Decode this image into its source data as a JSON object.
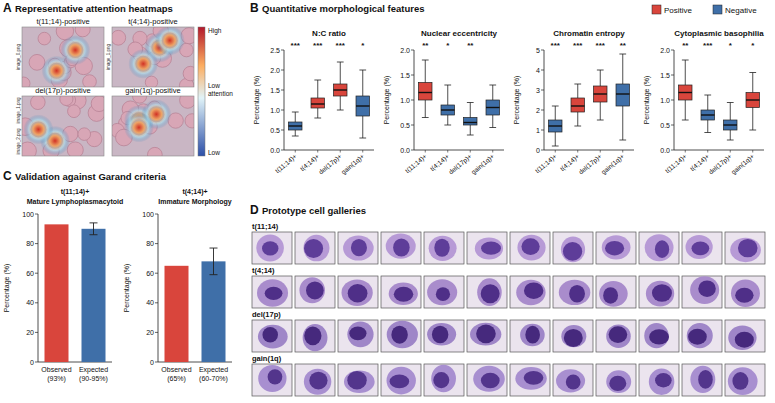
{
  "panel_a": {
    "letter": "A",
    "title": "Representative attention heatmaps",
    "images": [
      {
        "label": "t(11;14)-positive",
        "files": [
          "image_0.png"
        ]
      },
      {
        "label": "t(4;14)-positive",
        "files": [
          "image_1.png"
        ]
      },
      {
        "label": "del(17p)-positive",
        "files": [
          "image_1.png",
          "image_2.png"
        ]
      },
      {
        "label": "gain(1q)-positive",
        "files": []
      }
    ],
    "colorbar_labels": {
      "high": "High",
      "middle": "Low attention",
      "low": "Low"
    }
  },
  "panel_b": {
    "letter": "B",
    "title": "Quantitative morphological features",
    "legend_entries": [
      {
        "name": "Positive",
        "color": "#d9453c"
      },
      {
        "name": "Negative",
        "color": "#3f6fa8"
      }
    ]
  },
  "panel_c": {
    "letter": "C",
    "title": "Validation against Garand criteria"
  },
  "panel_d": {
    "letter": "D",
    "title": "Prototype cell galleries",
    "rows": [
      "t(11;14)",
      "t(4;14)",
      "del(17p)",
      "gain(1q)"
    ]
  },
  "chart_data": [
    {
      "type": "box",
      "title": "N:C ratio",
      "y_label": "Percentage (%)",
      "categories": [
        "t(11;14)+",
        "t(4;14)+",
        "del(17p)+",
        "gain(1q)+"
      ],
      "min": [
        0.35,
        0.8,
        1.0,
        0.3
      ],
      "q1": [
        0.5,
        1.05,
        1.35,
        0.85
      ],
      "median": [
        0.6,
        1.15,
        1.5,
        1.1
      ],
      "q3": [
        0.7,
        1.3,
        1.65,
        1.35
      ],
      "max": [
        0.95,
        1.75,
        2.2,
        2.0
      ],
      "colors": [
        "#3f6fa8",
        "#d9453c",
        "#d9453c",
        "#3f6fa8"
      ],
      "significance": [
        "***",
        "***",
        "***",
        "*"
      ],
      "ylim": [
        0,
        2.5
      ],
      "yticks": [
        {
          "value": 0,
          "label": "0.0"
        },
        {
          "value": 0.5,
          "label": "0.5"
        },
        {
          "value": 1,
          "label": "1.0"
        },
        {
          "value": 1.5,
          "label": "1.5"
        },
        {
          "value": 2,
          "label": "2.0"
        },
        {
          "value": 2.5,
          "label": "2.5"
        }
      ]
    },
    {
      "type": "box",
      "title": "Nuclear eccentricity",
      "y_label": "Percentage (%)",
      "categories": [
        "t(11;14)+",
        "t(4;14)+",
        "del(17p)+",
        "gain(1q)+"
      ],
      "min": [
        0.65,
        0.5,
        0.3,
        0.45
      ],
      "q1": [
        1.0,
        0.7,
        0.5,
        0.7
      ],
      "median": [
        1.15,
        0.8,
        0.55,
        0.85
      ],
      "q3": [
        1.35,
        0.9,
        0.65,
        1.0
      ],
      "max": [
        1.8,
        1.3,
        0.95,
        1.3
      ],
      "colors": [
        "#d9453c",
        "#3f6fa8",
        "#3f6fa8",
        "#3f6fa8"
      ],
      "significance": [
        "**",
        "*",
        "**",
        null
      ],
      "ylim": [
        0,
        2
      ],
      "yticks": [
        {
          "value": 0,
          "label": "0.0"
        },
        {
          "value": 0.5,
          "label": "0.5"
        },
        {
          "value": 1,
          "label": "1.0"
        },
        {
          "value": 1.5,
          "label": "1.5"
        },
        {
          "value": 2,
          "label": "2.0"
        }
      ]
    },
    {
      "type": "box",
      "title": "Chromatin entropy",
      "y_label": "Percentage (%)",
      "categories": [
        "t(11;14)+",
        "t(4;14)+",
        "del(17p)+",
        "gain(1q)+"
      ],
      "min": [
        0.2,
        1.2,
        1.5,
        0.5
      ],
      "q1": [
        0.9,
        1.9,
        2.4,
        2.2
      ],
      "median": [
        1.2,
        2.2,
        2.8,
        2.8
      ],
      "q3": [
        1.5,
        2.6,
        3.2,
        3.3
      ],
      "max": [
        2.2,
        3.3,
        4.0,
        4.8
      ],
      "colors": [
        "#3f6fa8",
        "#d9453c",
        "#d9453c",
        "#3f6fa8"
      ],
      "significance": [
        "***",
        "***",
        "***",
        "**"
      ],
      "ylim": [
        0,
        5
      ],
      "yticks": [
        0,
        1,
        2,
        3,
        4,
        5
      ]
    },
    {
      "type": "box",
      "title": "Cytoplasmic basophilia",
      "y_label": "Percentage (%)",
      "categories": [
        "t(11;14)+",
        "t(4;14)+",
        "del(17p)+",
        "gain(1q)+"
      ],
      "min": [
        0.6,
        0.35,
        0.2,
        0.4
      ],
      "q1": [
        1.0,
        0.6,
        0.4,
        0.85
      ],
      "median": [
        1.15,
        0.7,
        0.5,
        1.0
      ],
      "q3": [
        1.3,
        0.8,
        0.6,
        1.15
      ],
      "max": [
        1.8,
        1.1,
        0.95,
        1.55
      ],
      "colors": [
        "#d9453c",
        "#3f6fa8",
        "#3f6fa8",
        "#d9453c"
      ],
      "significance": [
        "**",
        "***",
        "*",
        "*"
      ],
      "ylim": [
        0,
        2
      ],
      "yticks": [
        {
          "value": 0,
          "label": "0.0"
        },
        {
          "value": 0.5,
          "label": "0.5"
        },
        {
          "value": 1,
          "label": "1.0"
        },
        {
          "value": 1.5,
          "label": "1.5"
        },
        {
          "value": 2,
          "label": "2.0"
        }
      ]
    },
    {
      "type": "bar",
      "title": "t(11;14)+",
      "subtitle": "Mature Lymphoplasmacytoid",
      "y_label": "Percentage (%)",
      "categories": [
        "Observed\n(93%)",
        "Expected\n(90-95%)"
      ],
      "values": [
        93,
        90
      ],
      "errors": [
        null,
        4
      ],
      "colors": [
        "#d9453c",
        "#3f6fa8"
      ],
      "ylim": [
        0,
        100
      ],
      "yticks": [
        0,
        20,
        40,
        60,
        80,
        100
      ]
    },
    {
      "type": "bar",
      "title": "t(4;14)+",
      "subtitle": "Immature Morphology",
      "y_label": "Percentage (%)",
      "categories": [
        "Observed\n(65%)",
        "Expected\n(60-70%)"
      ],
      "values": [
        65,
        68
      ],
      "errors": [
        null,
        9
      ],
      "colors": [
        "#d9453c",
        "#3f6fa8"
      ],
      "ylim": [
        0,
        100
      ],
      "yticks": [
        0,
        20,
        40,
        60,
        80,
        100
      ]
    }
  ]
}
